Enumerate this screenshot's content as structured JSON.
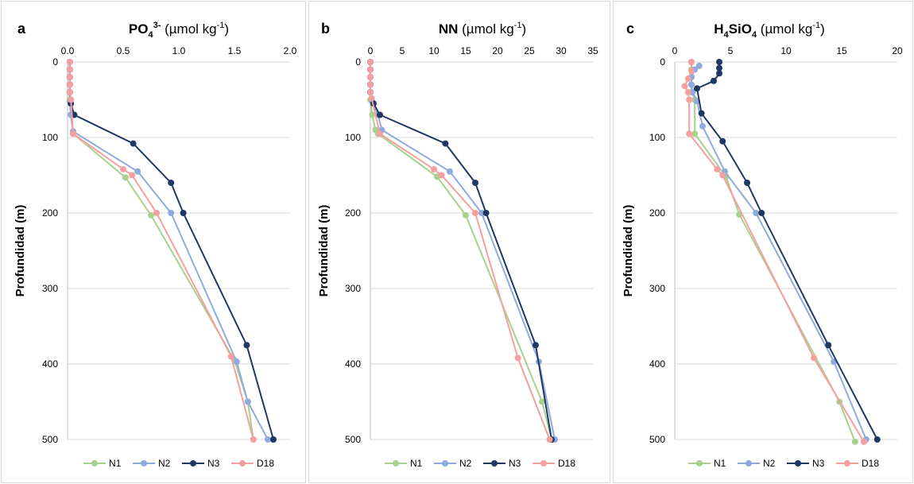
{
  "colors": {
    "N1": "#a9d18e",
    "N2": "#8faadc",
    "N3": "#203864",
    "D18": "#f4a0a0",
    "grid": "#d9d9d9",
    "errorbar": "#000000"
  },
  "chart_data": [
    {
      "type": "line",
      "panel_letter": "a",
      "title": "PO43- (µmol kg-1)",
      "title_parts": {
        "main": "PO",
        "sub": "4",
        "sup": "3-",
        "unit_prefix": " (µmol kg",
        "unit_sup": "-1",
        "unit_suffix": ")"
      },
      "ylabel": "Profundidad (m)",
      "xlim": [
        0,
        2.0
      ],
      "ylim": [
        0,
        500
      ],
      "y_inverted": true,
      "x_axis_position": "top",
      "x_ticks": [
        "0.0",
        "0.5",
        "1.0",
        "1.5",
        "2.0"
      ],
      "y_ticks": [
        "0",
        "100",
        "200",
        "300",
        "400",
        "500"
      ],
      "grid": "horizontal",
      "legend_position": "bottom",
      "series": [
        {
          "name": "N1",
          "x": [
            0.02,
            0.02,
            0.02,
            0.02,
            0.02,
            0.02,
            0.03,
            0.05,
            0.52,
            0.75,
            1.5,
            1.62,
            1.67
          ],
          "y": [
            0,
            10,
            20,
            30,
            40,
            50,
            70,
            95,
            153,
            203,
            395,
            450,
            500
          ]
        },
        {
          "name": "N2",
          "x": [
            0.02,
            0.02,
            0.02,
            0.02,
            0.02,
            0.02,
            0.03,
            0.05,
            0.63,
            0.93,
            1.52,
            1.62,
            1.8
          ],
          "y": [
            0,
            10,
            20,
            30,
            40,
            52,
            70,
            92,
            145,
            200,
            397,
            450,
            500
          ]
        },
        {
          "name": "N3",
          "x": [
            0.02,
            0.02,
            0.02,
            0.02,
            0.02,
            0.03,
            0.06,
            0.59,
            0.93,
            1.04,
            1.61,
            1.85
          ],
          "y": [
            0,
            10,
            20,
            30,
            40,
            55,
            70,
            108,
            160,
            200,
            375,
            500
          ]
        },
        {
          "name": "D18",
          "x": [
            0.02,
            0.02,
            0.02,
            0.02,
            0.02,
            0.03,
            0.05,
            0.5,
            0.58,
            0.8,
            1.47,
            1.67
          ],
          "y": [
            0,
            10,
            20,
            30,
            40,
            50,
            95,
            142,
            150,
            200,
            390,
            500
          ]
        }
      ]
    },
    {
      "type": "line",
      "panel_letter": "b",
      "title": "NN (µmol kg-1)",
      "title_parts": {
        "main": "NN",
        "sub": "",
        "sup": "",
        "unit_prefix": " (µmol kg",
        "unit_sup": "-1",
        "unit_suffix": ")"
      },
      "ylabel": "Profundidad (m)",
      "xlim": [
        0,
        35
      ],
      "ylim": [
        0,
        500
      ],
      "y_inverted": true,
      "x_axis_position": "top",
      "x_ticks": [
        "0",
        "5",
        "10",
        "15",
        "20",
        "25",
        "30",
        "35"
      ],
      "y_ticks": [
        "0",
        "100",
        "200",
        "300",
        "400",
        "500"
      ],
      "grid": "horizontal",
      "legend_position": "bottom",
      "series": [
        {
          "name": "N1",
          "x": [
            0,
            0,
            0,
            0,
            0,
            0,
            0.3,
            0.8,
            1.2,
            10.5,
            15,
            27,
            28.5
          ],
          "y": [
            0,
            10,
            20,
            30,
            40,
            50,
            70,
            90,
            95,
            152,
            203,
            450,
            500
          ]
        },
        {
          "name": "N2",
          "x": [
            0,
            0,
            0,
            0,
            0,
            0.3,
            1.2,
            1.8,
            12.5,
            17.5,
            26.5,
            29
          ],
          "y": [
            0,
            10,
            20,
            30,
            40,
            53,
            70,
            90,
            145,
            200,
            397,
            500
          ]
        },
        {
          "name": "N3",
          "x": [
            0,
            0,
            0,
            0,
            0,
            0.5,
            1.5,
            11.8,
            16.5,
            18.2,
            26,
            28.5
          ],
          "y": [
            0,
            10,
            20,
            30,
            40,
            55,
            70,
            108,
            160,
            200,
            375,
            500
          ]
        },
        {
          "name": "D18",
          "x": [
            0,
            0,
            0,
            0,
            0,
            0.2,
            1.5,
            10,
            11.2,
            16.5,
            23.2,
            28.2
          ],
          "y": [
            0,
            10,
            20,
            30,
            40,
            48,
            95,
            142,
            150,
            200,
            392,
            500
          ]
        }
      ]
    },
    {
      "type": "line",
      "panel_letter": "c",
      "title": "H4SiO4 (µmol kg-1)",
      "title_parts": {
        "main": "H",
        "sub": "4",
        "main2": "SiO",
        "sub2": "4",
        "unit_prefix": " (µmol kg",
        "unit_sup": "-1",
        "unit_suffix": ")"
      },
      "ylabel": "Profundidad (m)",
      "xlim": [
        0,
        20
      ],
      "ylim": [
        0,
        500
      ],
      "y_inverted": true,
      "x_axis_position": "top",
      "x_ticks": [
        "0",
        "5",
        "10",
        "15",
        "20"
      ],
      "y_ticks": [
        "0",
        "100",
        "200",
        "300",
        "400",
        "500"
      ],
      "grid": "horizontal",
      "legend_position": "bottom",
      "series": [
        {
          "name": "N1",
          "x": [
            1.5,
            1.5,
            1.5,
            1.5,
            1.5,
            1.8,
            1.8,
            4.6,
            5.8,
            14.8,
            16.2
          ],
          "y": [
            0,
            10,
            20,
            30,
            40,
            50,
            95,
            152,
            202,
            450,
            503
          ]
        },
        {
          "name": "N2",
          "x": [
            2.2,
            1.8,
            1.5,
            1.5,
            1.6,
            2,
            2.5,
            4.5,
            7.3,
            14.3,
            17.2
          ],
          "y": [
            5,
            10,
            20,
            30,
            40,
            52,
            85,
            145,
            200,
            397,
            500
          ]
        },
        {
          "name": "N3",
          "x": [
            4,
            4,
            4,
            3.5,
            2,
            2.4,
            4.3,
            6.5,
            7.8,
            13.8,
            18.2
          ],
          "y": [
            0,
            8,
            15,
            25,
            35,
            68,
            105,
            160,
            200,
            375,
            500
          ]
        },
        {
          "name": "D18",
          "x": [
            1.5,
            1.5,
            1.2,
            0.9,
            1.2,
            1.3,
            1.3,
            3.8,
            4.3,
            12.5,
            17
          ],
          "y": [
            0,
            12,
            22,
            32,
            40,
            50,
            95,
            142,
            150,
            392,
            503
          ]
        }
      ]
    }
  ]
}
